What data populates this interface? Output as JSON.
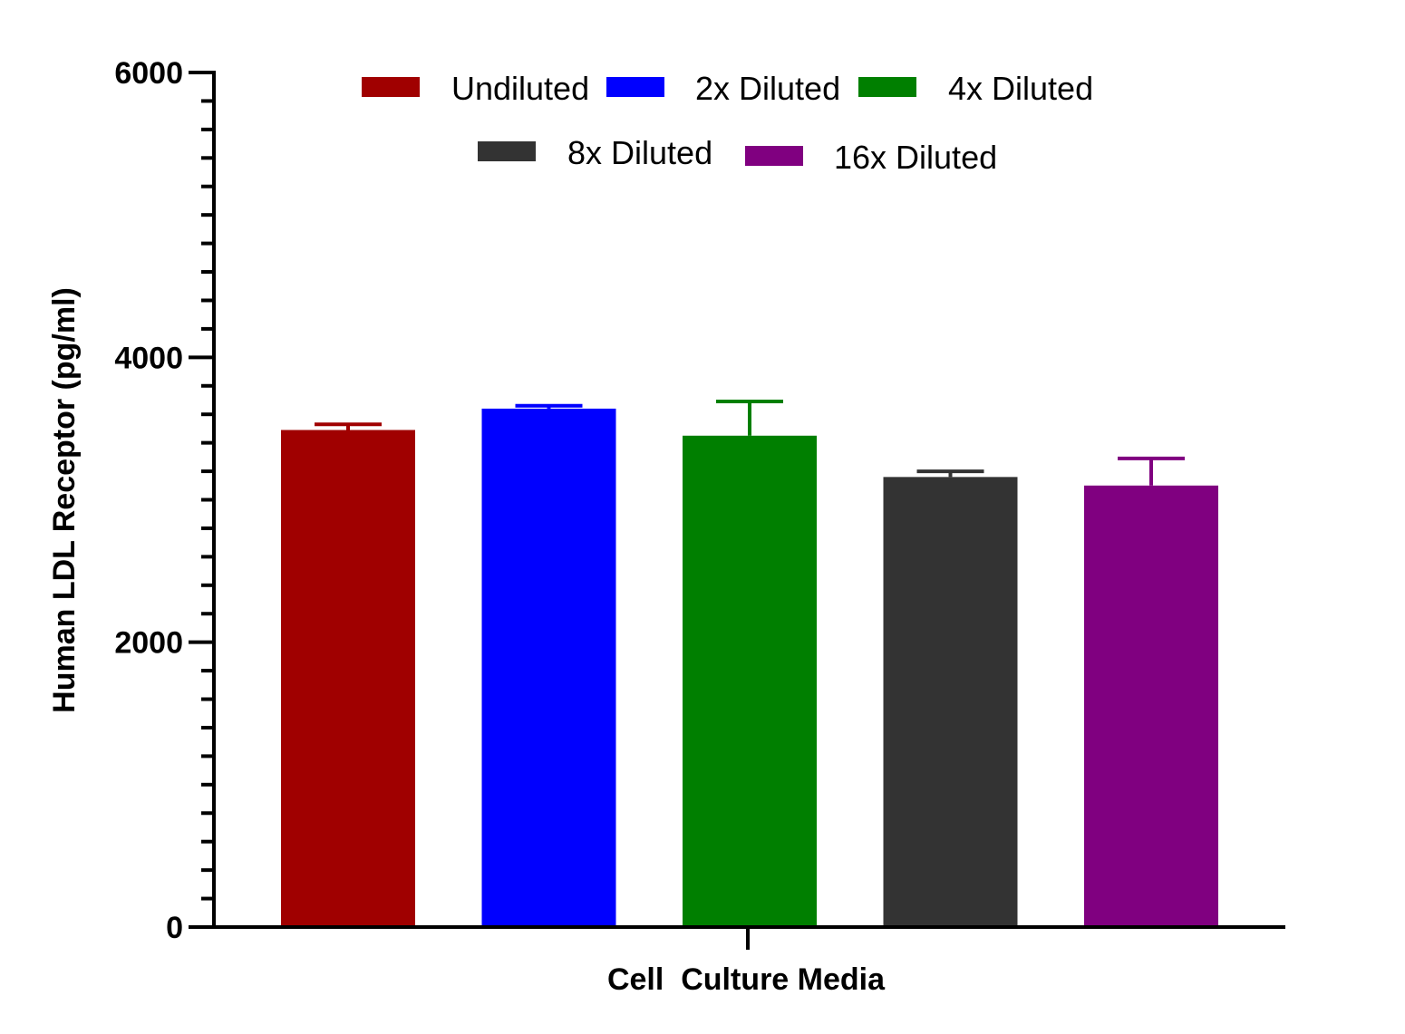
{
  "chart_data": {
    "type": "bar",
    "title": "",
    "xlabel": "Cell  Culture Media",
    "ylabel": "Human LDL Receptor (pg/ml)",
    "ylim": [
      0,
      6000
    ],
    "yticks": [
      0,
      2000,
      4000,
      6000
    ],
    "y_tick_labels": [
      "0",
      "2000",
      "4000",
      "6000"
    ],
    "minor_tick_step": 200,
    "legend_position": "top",
    "series": [
      {
        "name": "Undiluted",
        "value": 3490,
        "error": 40,
        "color": "#a00000"
      },
      {
        "name": "2x Diluted",
        "value": 3640,
        "error": 20,
        "color": "#0000ff"
      },
      {
        "name": "4x Diluted",
        "value": 3450,
        "error": 240,
        "color": "#007f00"
      },
      {
        "name": "8x Diluted",
        "value": 3160,
        "error": 40,
        "color": "#333333"
      },
      {
        "name": "16x Diluted",
        "value": 3100,
        "error": 190,
        "color": "#800080"
      }
    ]
  }
}
